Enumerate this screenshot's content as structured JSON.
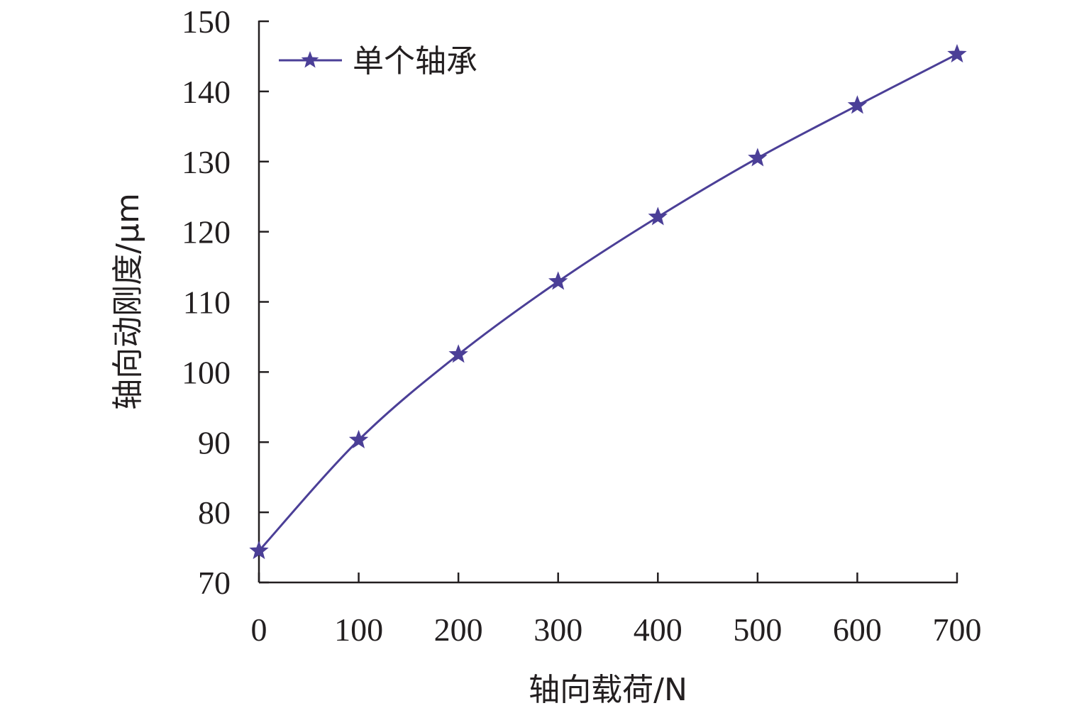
{
  "chart_data": {
    "type": "line",
    "x": [
      0,
      100,
      200,
      300,
      400,
      500,
      600,
      700
    ],
    "series": [
      {
        "name": "单个轴承",
        "values": [
          74.5,
          90.3,
          102.5,
          112.9,
          122.1,
          130.5,
          138.0,
          145.3
        ],
        "color": "#4b3f97",
        "marker": "star"
      }
    ],
    "xlabel": "轴向载荷/N",
    "ylabel": "轴向动刚度/μm",
    "xlim": [
      0,
      700
    ],
    "ylim": [
      70,
      150
    ],
    "xticks": [
      "0",
      "100",
      "200",
      "300",
      "400",
      "500",
      "600",
      "700"
    ],
    "yticks": [
      "70",
      "80",
      "90",
      "100",
      "110",
      "120",
      "130",
      "140",
      "150"
    ],
    "grid": false,
    "legend_position": "top-left"
  }
}
